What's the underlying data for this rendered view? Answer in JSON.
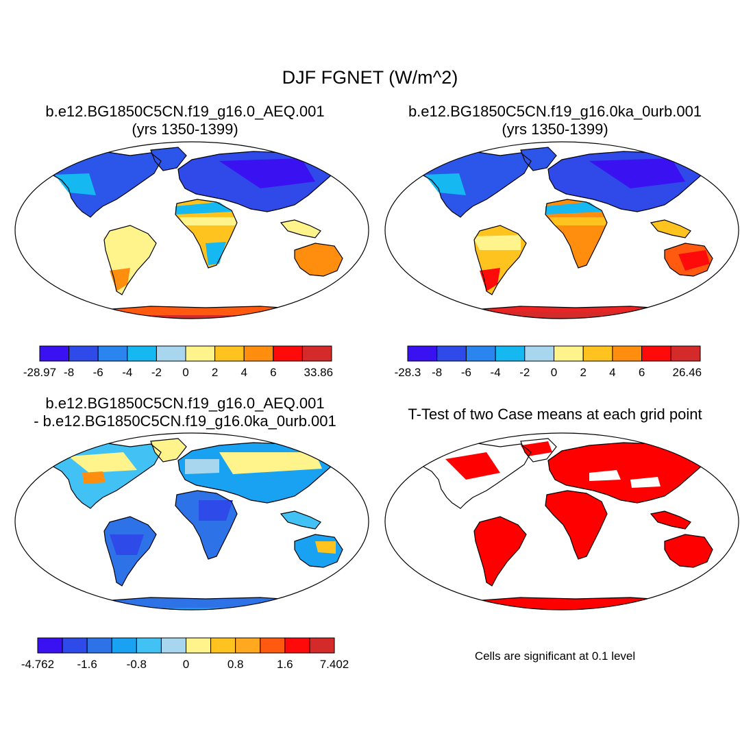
{
  "title": "DJF FGNET (W/m^2)",
  "panels": [
    {
      "title_line1": "b.e12.BG1850C5CN.f19_g16.0_AEQ.001",
      "title_line2": "(yrs 1350-1399)",
      "colorbar": {
        "colors": [
          "#3a12f2",
          "#2e4ae8",
          "#2a86ee",
          "#16b8f2",
          "#a8d6ef",
          "#fff38c",
          "#ffc320",
          "#ff8e0f",
          "#ff0a0a",
          "#d42a2a"
        ],
        "labels": [
          "-28.97",
          "-8",
          "-6",
          "-4",
          "-2",
          "0",
          "2",
          "4",
          "6",
          "33.86"
        ]
      }
    },
    {
      "title_line1": "b.e12.BG1850C5CN.f19_g16.0ka_0urb.001",
      "title_line2": "(yrs 1350-1399)",
      "colorbar": {
        "colors": [
          "#3a12f2",
          "#2e4ae8",
          "#2a86ee",
          "#16b8f2",
          "#a8d6ef",
          "#fff38c",
          "#ffc320",
          "#ff8e0f",
          "#ff0a0a",
          "#d42a2a"
        ],
        "labels": [
          "-28.3",
          "-8",
          "-6",
          "-4",
          "-2",
          "0",
          "2",
          "4",
          "6",
          "26.46"
        ]
      }
    },
    {
      "title_line1": "b.e12.BG1850C5CN.f19_g16.0_AEQ.001",
      "title_line2": "- b.e12.BG1850C5CN.f19_g16.0ka_0urb.001",
      "colorbar": {
        "colors": [
          "#3a12f2",
          "#2e4ae8",
          "#2e72e8",
          "#1aa2f2",
          "#42c2f4",
          "#a8d6ef",
          "#fff38c",
          "#ffc320",
          "#ffa820",
          "#ff5a10",
          "#ff0a0a",
          "#d42a2a"
        ],
        "labels": [
          "-4.762",
          "-1.6",
          "-0.8",
          "0",
          "0.8",
          "1.6",
          "7.402"
        ],
        "label_boundaries": [
          0,
          2,
          4,
          6,
          8,
          10,
          12
        ]
      }
    },
    {
      "title_line1": "T-Test of two Case means at each grid point",
      "title_line2": "",
      "note": "Cells are significant at 0.1 level"
    }
  ],
  "map_colors": {
    "ocean": "#ffffff",
    "coast": "#000000",
    "significant": "#ff0000"
  }
}
